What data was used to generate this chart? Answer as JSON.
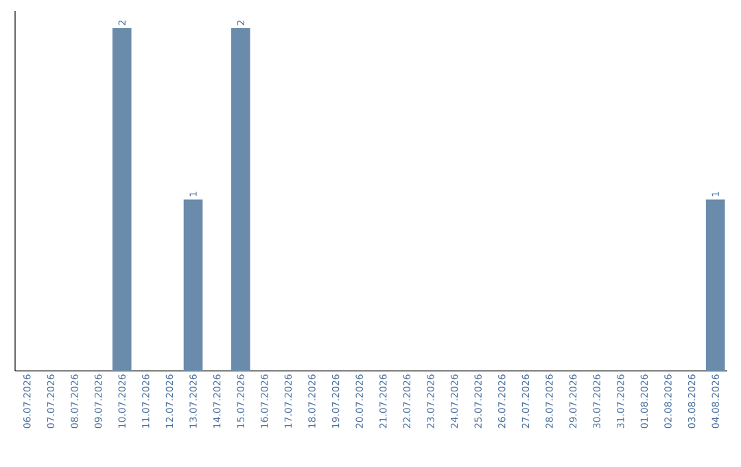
{
  "chart_data": {
    "type": "bar",
    "categories": [
      "06.07.2026",
      "07.07.2026",
      "08.07.2026",
      "09.07.2026",
      "10.07.2026",
      "11.07.2026",
      "12.07.2026",
      "13.07.2026",
      "14.07.2026",
      "15.07.2026",
      "16.07.2026",
      "17.07.2026",
      "18.07.2026",
      "19.07.2026",
      "20.07.2026",
      "21.07.2026",
      "22.07.2026",
      "23.07.2026",
      "24.07.2026",
      "25.07.2026",
      "26.07.2026",
      "27.07.2026",
      "28.07.2026",
      "29.07.2026",
      "30.07.2026",
      "31.07.2026",
      "01.08.2026",
      "02.08.2026",
      "03.08.2026",
      "04.08.2026"
    ],
    "values": [
      0,
      0,
      0,
      0,
      2,
      0,
      0,
      1,
      0,
      2,
      0,
      0,
      0,
      0,
      0,
      0,
      0,
      0,
      0,
      0,
      0,
      0,
      0,
      0,
      0,
      0,
      0,
      0,
      0,
      1
    ],
    "value_labels": [
      null,
      null,
      null,
      null,
      "2",
      null,
      null,
      "1",
      null,
      "2",
      null,
      null,
      null,
      null,
      null,
      null,
      null,
      null,
      null,
      null,
      null,
      null,
      null,
      null,
      null,
      null,
      null,
      null,
      null,
      "1"
    ],
    "color": "#6b8bab",
    "tick_labels": "x"
  }
}
